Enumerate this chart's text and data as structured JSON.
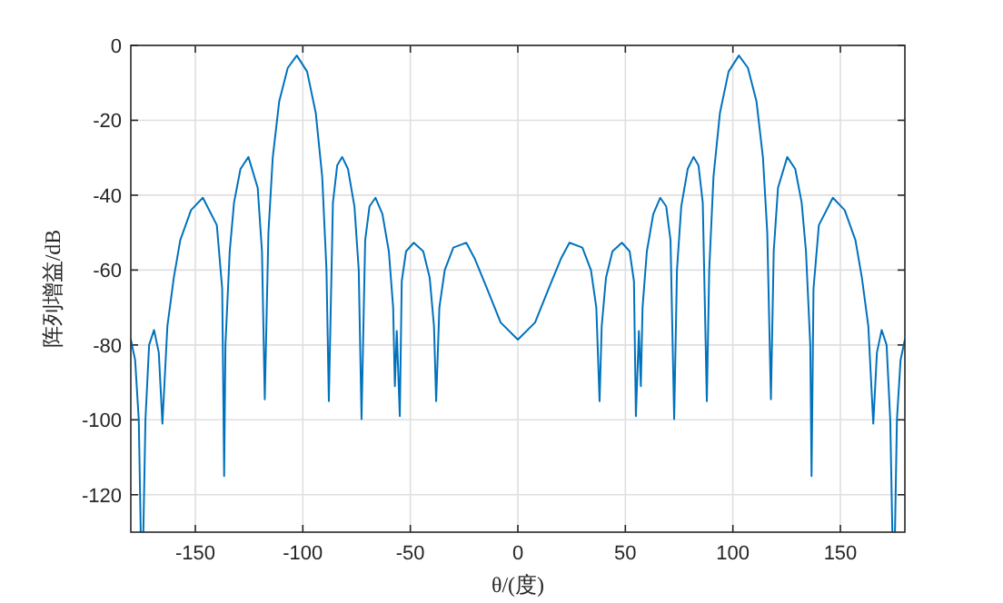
{
  "chart_data": {
    "type": "line",
    "xlabel": "θ/(度)",
    "ylabel": "阵列增益/dB",
    "xlim": [
      -180,
      180
    ],
    "ylim": [
      -130,
      0
    ],
    "xticks": [
      -150,
      -100,
      -50,
      0,
      50,
      100,
      150
    ],
    "yticks": [
      -120,
      -100,
      -80,
      -60,
      -40,
      -20,
      0
    ],
    "grid": true,
    "marker": "none",
    "line_style": "solid",
    "series": [
      {
        "color": "#0072bd",
        "x": [
          -180,
          -178,
          -176.3,
          -174.8,
          -173.2,
          -171.5,
          -169.2,
          -167,
          -165.3,
          -163,
          -160,
          -157,
          -152,
          -146.5,
          -140,
          -137.5,
          -136.6,
          -136,
          -134,
          -132,
          -129,
          -125.3,
          -121,
          -119,
          -117.7,
          -116,
          -114,
          -111,
          -107,
          -102.8,
          -98,
          -94,
          -91,
          -89,
          -87.9,
          -86,
          -84,
          -81.7,
          -79,
          -76,
          -74,
          -72.7,
          -71,
          -69,
          -66.2,
          -63,
          -60,
          -58,
          -57.2,
          -56.3,
          -54.9,
          -54,
          -52,
          -48.4,
          -44,
          -41,
          -39,
          -38,
          -36.5,
          -34,
          -30,
          -24,
          -20,
          -15,
          -8,
          0,
          8,
          15,
          20,
          24,
          30,
          34,
          36.5,
          38,
          39,
          41,
          44,
          48.4,
          52,
          54,
          54.9,
          56.3,
          57.2,
          58,
          60,
          63,
          66.2,
          69,
          71,
          72.7,
          74,
          76,
          79,
          81.7,
          84,
          86,
          87.9,
          89,
          91,
          94,
          98,
          102.8,
          107,
          111,
          114,
          116,
          117.7,
          119,
          121,
          125.3,
          129,
          132,
          134,
          136,
          136.6,
          137.5,
          140,
          146.5,
          152,
          157,
          160,
          163,
          165.3,
          167,
          169.2,
          171.5,
          173.2,
          174.8,
          176.3,
          178,
          180
        ],
        "values": [
          -78.6,
          -84,
          -100,
          null,
          -100,
          -80,
          -76,
          -82,
          -101,
          -75,
          -62,
          -52,
          -44,
          -40.7,
          -48,
          -65,
          -115,
          -80,
          -55,
          -42,
          -33,
          -29.8,
          -38,
          -55,
          -94.5,
          -50,
          -30,
          -15,
          -6,
          -2.7,
          -7,
          -18,
          -35,
          -60,
          -95,
          -42,
          -32,
          -29.8,
          -33,
          -43,
          -60,
          -99.8,
          -52,
          -43,
          -40.7,
          -45,
          -55,
          -70,
          -91,
          -76.3,
          -99,
          -63,
          -55,
          -52.7,
          -55,
          -62,
          -75,
          -95,
          -70,
          -60,
          -54,
          -52.7,
          -57,
          -64,
          -74,
          -78.6,
          -74,
          -64,
          -57,
          -52.7,
          -54,
          -60,
          -70,
          -95,
          -75,
          -62,
          -55,
          -52.7,
          -55,
          -63,
          -99,
          -76.3,
          -91,
          -70,
          -55,
          -45,
          -40.7,
          -43,
          -52,
          -99.8,
          -60,
          -43,
          -33,
          -29.8,
          -32,
          -42,
          -95,
          -60,
          -35,
          -18,
          -7,
          -2.7,
          -6,
          -15,
          -30,
          -50,
          -94.5,
          -55,
          -38,
          -29.8,
          -33,
          -42,
          -55,
          -80,
          -115,
          -65,
          -48,
          -40.7,
          -44,
          -52,
          -62,
          -75,
          -101,
          -82,
          -76,
          -80,
          -100,
          null,
          -100,
          -84,
          -78.6
        ]
      }
    ]
  }
}
